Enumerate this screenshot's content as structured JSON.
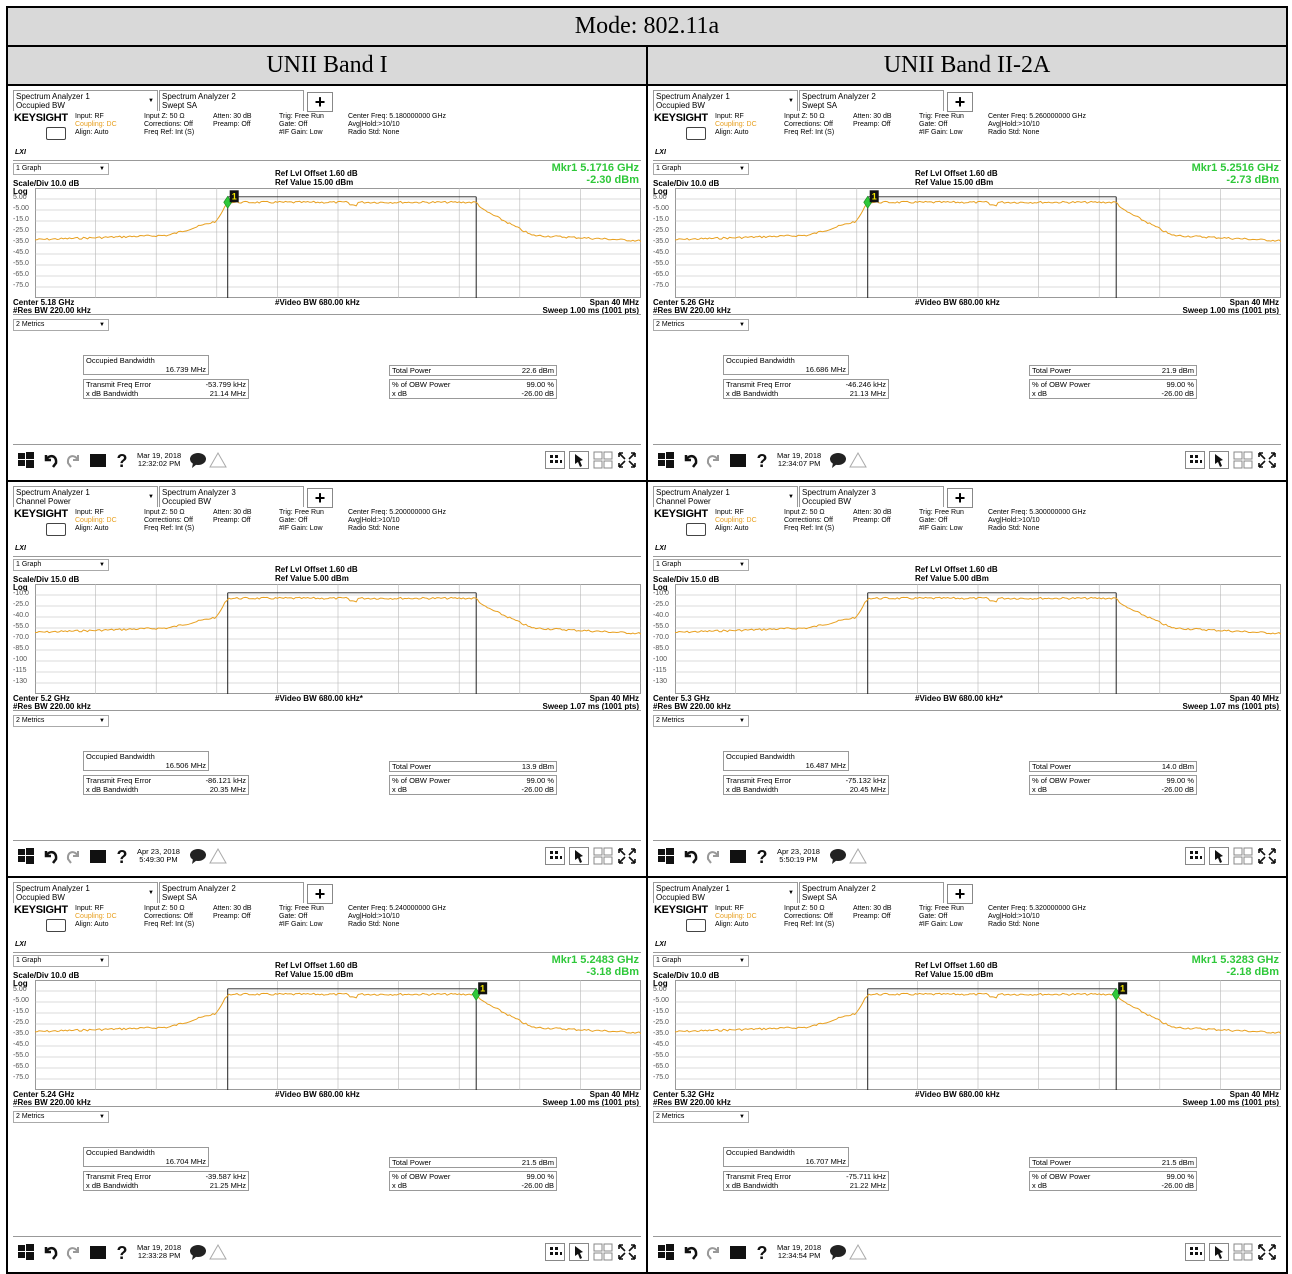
{
  "title": "Mode: 802.11a",
  "columns": [
    "UNII Band I",
    "UNII Band II-2A"
  ],
  "panels": [
    {
      "tab1": {
        "line1": "Spectrum Analyzer 1",
        "line2": "Occupied BW"
      },
      "tab2": {
        "line1": "Spectrum Analyzer 2",
        "line2": "Swept SA"
      },
      "info": {
        "brand": "KEYSIGHT",
        "input": "Input: RF",
        "coupling": "Coupling: DC",
        "align": "Align: Auto",
        "inputz": "Input Z: 50 Ω",
        "corrections": "Corrections: Off",
        "freqref": "Freq Ref: Int (S)",
        "atten": "Atten: 30 dB",
        "preamp": "Preamp: Off",
        "trig": "Trig: Free Run",
        "gate": "Gate: Off",
        "ifgain": "#IF Gain: Low",
        "center_freq": "Center Freq: 5.180000000 GHz",
        "avg": "Avg|Hold:>10/10",
        "radio": "Radio Std: None",
        "lxi": "LXI"
      },
      "graph_dd": "1 Graph",
      "scale": "Scale/Div 10.0 dB",
      "log": "Log",
      "ref_offset": "Ref Lvl Offset 1.60 dB",
      "ref_value": "Ref Value 15.00 dBm",
      "mkr_freq": "Mkr1  5.1716 GHz",
      "mkr_level": "-2.30 dBm",
      "yticks": [
        "5.00",
        "-5.00",
        "-15.0",
        "-25.0",
        "-35.0",
        "-45.0",
        "-55.0",
        "-65.0",
        "-75.0"
      ],
      "center": "Center 5.18 GHz",
      "rbw": "#Res BW 220.00 kHz",
      "vbw": "#Video BW 680.00 kHz",
      "span": "Span 40 MHz",
      "sweep": "Sweep 1.00 ms (1001 pts)",
      "metrics_dd": "2 Metrics",
      "obw_label": "Occupied Bandwidth",
      "obw": "16.739 MHz",
      "tfe_label": "Transmit Freq Error",
      "tfe": "-53.799 kHz",
      "xdb_label": "x dB Bandwidth",
      "xdb": "21.14 MHz",
      "tp_label": "Total Power",
      "tp": "22.6 dBm",
      "pct_label": "% of OBW Power",
      "pct": "99.00 %",
      "xdb2_label": "x dB",
      "xdb2": "-26.00 dB",
      "date": "Mar 19, 2018",
      "time": "12:32:02 PM",
      "marker_at": 0.318,
      "floor_level": -41,
      "top_level": -3,
      "show_marker": true
    },
    {
      "tab1": {
        "line1": "Spectrum Analyzer 1",
        "line2": "Occupied BW"
      },
      "tab2": {
        "line1": "Spectrum Analyzer 2",
        "line2": "Swept SA"
      },
      "info": {
        "brand": "KEYSIGHT",
        "input": "Input: RF",
        "coupling": "Coupling: DC",
        "align": "Align: Auto",
        "inputz": "Input Z: 50 Ω",
        "corrections": "Corrections: Off",
        "freqref": "Freq Ref: Int (S)",
        "atten": "Atten: 30 dB",
        "preamp": "Preamp: Off",
        "trig": "Trig: Free Run",
        "gate": "Gate: Off",
        "ifgain": "#IF Gain: Low",
        "center_freq": "Center Freq: 5.260000000 GHz",
        "avg": "Avg|Hold:>10/10",
        "radio": "Radio Std: None",
        "lxi": "LXI"
      },
      "graph_dd": "1 Graph",
      "scale": "Scale/Div 10.0 dB",
      "log": "Log",
      "ref_offset": "Ref Lvl Offset 1.60 dB",
      "ref_value": "Ref Value 15.00 dBm",
      "mkr_freq": "Mkr1  5.2516 GHz",
      "mkr_level": "-2.73 dBm",
      "yticks": [
        "5.00",
        "-5.00",
        "-15.0",
        "-25.0",
        "-35.0",
        "-45.0",
        "-55.0",
        "-65.0",
        "-75.0"
      ],
      "center": "Center 5.26 GHz",
      "rbw": "#Res BW 220.00 kHz",
      "vbw": "#Video BW 680.00 kHz",
      "span": "Span 40 MHz",
      "sweep": "Sweep 1.00 ms (1001 pts)",
      "metrics_dd": "2 Metrics",
      "obw_label": "Occupied Bandwidth",
      "obw": "16.686 MHz",
      "tfe_label": "Transmit Freq Error",
      "tfe": "-46.246 kHz",
      "xdb_label": "x dB Bandwidth",
      "xdb": "21.13 MHz",
      "tp_label": "Total Power",
      "tp": "21.9 dBm",
      "pct_label": "% of OBW Power",
      "pct": "99.00 %",
      "xdb2_label": "x dB",
      "xdb2": "-26.00 dB",
      "date": "Mar 19, 2018",
      "time": "12:34:07 PM",
      "marker_at": 0.318,
      "floor_level": -41,
      "top_level": -3,
      "show_marker": true
    },
    {
      "tab1": {
        "line1": "Spectrum Analyzer 1",
        "line2": "Channel Power"
      },
      "tab2": {
        "line1": "Spectrum Analyzer 3",
        "line2": "Occupied BW"
      },
      "info": {
        "brand": "KEYSIGHT",
        "input": "Input: RF",
        "coupling": "Coupling: DC",
        "align": "Align: Auto",
        "inputz": "Input Z: 50 Ω",
        "corrections": "Corrections: Off",
        "freqref": "Freq Ref: Int (S)",
        "atten": "Atten: 30 dB",
        "preamp": "Preamp: Off",
        "trig": "Trig: Free Run",
        "gate": "Gate: Off",
        "ifgain": "#IF Gain: Low",
        "center_freq": "Center Freq: 5.200000000 GHz",
        "avg": "Avg|Hold:>10/10",
        "radio": "Radio Std: None",
        "lxi": "LXI"
      },
      "graph_dd": "1 Graph",
      "scale": "Scale/Div 15.0 dB",
      "log": "Log",
      "ref_offset": "Ref Lvl Offset 1.60 dB",
      "ref_value": "Ref Value 5.00 dBm",
      "mkr_freq": "",
      "mkr_level": "",
      "yticks": [
        "-10.0",
        "-25.0",
        "-40.0",
        "-55.0",
        "-70.0",
        "-85.0",
        "-100",
        "-115",
        "-130"
      ],
      "center": "Center 5.2 GHz",
      "rbw": "#Res BW 220.00 kHz",
      "vbw": "#Video BW 680.00 kHz*",
      "span": "Span 40 MHz",
      "sweep": "Sweep 1.07 ms (1001 pts)",
      "metrics_dd": "2 Metrics",
      "obw_label": "Occupied Bandwidth",
      "obw": "16.506 MHz",
      "tfe_label": "Transmit Freq Error",
      "tfe": "-86.121 kHz",
      "xdb_label": "x dB Bandwidth",
      "xdb": "20.35 MHz",
      "tp_label": "Total Power",
      "tp": "13.9 dBm",
      "pct_label": "% of OBW Power",
      "pct": "99.00 %",
      "xdb2_label": "x dB",
      "xdb2": "-26.00 dB",
      "date": "Apr 23, 2018",
      "time": "5:49:30 PM",
      "marker_at": null,
      "floor_level": -52,
      "top_level": -15,
      "show_marker": false
    },
    {
      "tab1": {
        "line1": "Spectrum Analyzer 1",
        "line2": "Channel Power"
      },
      "tab2": {
        "line1": "Spectrum Analyzer 3",
        "line2": "Occupied BW"
      },
      "info": {
        "brand": "KEYSIGHT",
        "input": "Input: RF",
        "coupling": "Coupling: DC",
        "align": "Align: Auto",
        "inputz": "Input Z: 50 Ω",
        "corrections": "Corrections: Off",
        "freqref": "Freq Ref: Int (S)",
        "atten": "Atten: 30 dB",
        "preamp": "Preamp: Off",
        "trig": "Trig: Free Run",
        "gate": "Gate: Off",
        "ifgain": "#IF Gain: Low",
        "center_freq": "Center Freq: 5.300000000 GHz",
        "avg": "Avg|Hold:>10/10",
        "radio": "Radio Std: None",
        "lxi": "LXI"
      },
      "graph_dd": "1 Graph",
      "scale": "Scale/Div 15.0 dB",
      "log": "Log",
      "ref_offset": "Ref Lvl Offset 1.60 dB",
      "ref_value": "Ref Value 5.00 dBm",
      "mkr_freq": "",
      "mkr_level": "",
      "yticks": [
        "-10.0",
        "-25.0",
        "-40.0",
        "-55.0",
        "-70.0",
        "-85.0",
        "-100",
        "-115",
        "-130"
      ],
      "center": "Center 5.3 GHz",
      "rbw": "#Res BW 220.00 kHz",
      "vbw": "#Video BW 680.00 kHz*",
      "span": "Span 40 MHz",
      "sweep": "Sweep 1.07 ms (1001 pts)",
      "metrics_dd": "2 Metrics",
      "obw_label": "Occupied Bandwidth",
      "obw": "16.487 MHz",
      "tfe_label": "Transmit Freq Error",
      "tfe": "-75.132 kHz",
      "xdb_label": "x dB Bandwidth",
      "xdb": "20.45 MHz",
      "tp_label": "Total Power",
      "tp": "14.0 dBm",
      "pct_label": "% of OBW Power",
      "pct": "99.00 %",
      "xdb2_label": "x dB",
      "xdb2": "-26.00 dB",
      "date": "Apr 23, 2018",
      "time": "5:50:19 PM",
      "marker_at": null,
      "floor_level": -52,
      "top_level": -15,
      "show_marker": false
    },
    {
      "tab1": {
        "line1": "Spectrum Analyzer 1",
        "line2": "Occupied BW"
      },
      "tab2": {
        "line1": "Spectrum Analyzer 2",
        "line2": "Swept SA"
      },
      "info": {
        "brand": "KEYSIGHT",
        "input": "Input: RF",
        "coupling": "Coupling: DC",
        "align": "Align: Auto",
        "inputz": "Input Z: 50 Ω",
        "corrections": "Corrections: Off",
        "freqref": "Freq Ref: Int (S)",
        "atten": "Atten: 30 dB",
        "preamp": "Preamp: Off",
        "trig": "Trig: Free Run",
        "gate": "Gate: Off",
        "ifgain": "#IF Gain: Low",
        "center_freq": "Center Freq: 5.240000000 GHz",
        "avg": "Avg|Hold:>10/10",
        "radio": "Radio Std: None",
        "lxi": "LXI"
      },
      "graph_dd": "1 Graph",
      "scale": "Scale/Div 10.0 dB",
      "log": "Log",
      "ref_offset": "Ref Lvl Offset 1.60 dB",
      "ref_value": "Ref Value 15.00 dBm",
      "mkr_freq": "Mkr1  5.2483 GHz",
      "mkr_level": "-3.18 dBm",
      "yticks": [
        "5.00",
        "-5.00",
        "-15.0",
        "-25.0",
        "-35.0",
        "-45.0",
        "-55.0",
        "-65.0",
        "-75.0"
      ],
      "center": "Center 5.24 GHz",
      "rbw": "#Res BW 220.00 kHz",
      "vbw": "#Video BW 680.00 kHz",
      "span": "Span 40 MHz",
      "sweep": "Sweep 1.00 ms (1001 pts)",
      "metrics_dd": "2 Metrics",
      "obw_label": "Occupied Bandwidth",
      "obw": "16.704 MHz",
      "tfe_label": "Transmit Freq Error",
      "tfe": "-39.587 kHz",
      "xdb_label": "x dB Bandwidth",
      "xdb": "21.25 MHz",
      "tp_label": "Total Power",
      "tp": "21.5 dBm",
      "pct_label": "% of OBW Power",
      "pct": "99.00 %",
      "xdb2_label": "x dB",
      "xdb2": "-26.00 dB",
      "date": "Mar 19, 2018",
      "time": "12:33:28 PM",
      "marker_at": 0.728,
      "floor_level": -41,
      "top_level": -3,
      "show_marker": true
    },
    {
      "tab1": {
        "line1": "Spectrum Analyzer 1",
        "line2": "Occupied BW"
      },
      "tab2": {
        "line1": "Spectrum Analyzer 2",
        "line2": "Swept SA"
      },
      "info": {
        "brand": "KEYSIGHT",
        "input": "Input: RF",
        "coupling": "Coupling: DC",
        "align": "Align: Auto",
        "inputz": "Input Z: 50 Ω",
        "corrections": "Corrections: Off",
        "freqref": "Freq Ref: Int (S)",
        "atten": "Atten: 30 dB",
        "preamp": "Preamp: Off",
        "trig": "Trig: Free Run",
        "gate": "Gate: Off",
        "ifgain": "#IF Gain: Low",
        "center_freq": "Center Freq: 5.320000000 GHz",
        "avg": "Avg|Hold:>10/10",
        "radio": "Radio Std: None",
        "lxi": "LXI"
      },
      "graph_dd": "1 Graph",
      "scale": "Scale/Div 10.0 dB",
      "log": "Log",
      "ref_offset": "Ref Lvl Offset 1.60 dB",
      "ref_value": "Ref Value 15.00 dBm",
      "mkr_freq": "Mkr1  5.3283 GHz",
      "mkr_level": "-2.18 dBm",
      "yticks": [
        "5.00",
        "-5.00",
        "-15.0",
        "-25.0",
        "-35.0",
        "-45.0",
        "-55.0",
        "-65.0",
        "-75.0"
      ],
      "center": "Center 5.32 GHz",
      "rbw": "#Res BW 220.00 kHz",
      "vbw": "#Video BW 680.00 kHz",
      "span": "Span 40 MHz",
      "sweep": "Sweep 1.00 ms (1001 pts)",
      "metrics_dd": "2 Metrics",
      "obw_label": "Occupied Bandwidth",
      "obw": "16.707 MHz",
      "tfe_label": "Transmit Freq Error",
      "tfe": "-75.711 kHz",
      "xdb_label": "x dB Bandwidth",
      "xdb": "21.22 MHz",
      "tp_label": "Total Power",
      "tp": "21.5 dBm",
      "pct_label": "% of OBW Power",
      "pct": "99.00 %",
      "xdb2_label": "x dB",
      "xdb2": "-26.00 dB",
      "date": "Mar 19, 2018",
      "time": "12:34:54 PM",
      "marker_at": 0.728,
      "floor_level": -41,
      "top_level": -3,
      "show_marker": true
    }
  ],
  "colors": {
    "trace": "#e8a020",
    "marker": "#2fc83a",
    "grid": "#b8b8b8"
  }
}
